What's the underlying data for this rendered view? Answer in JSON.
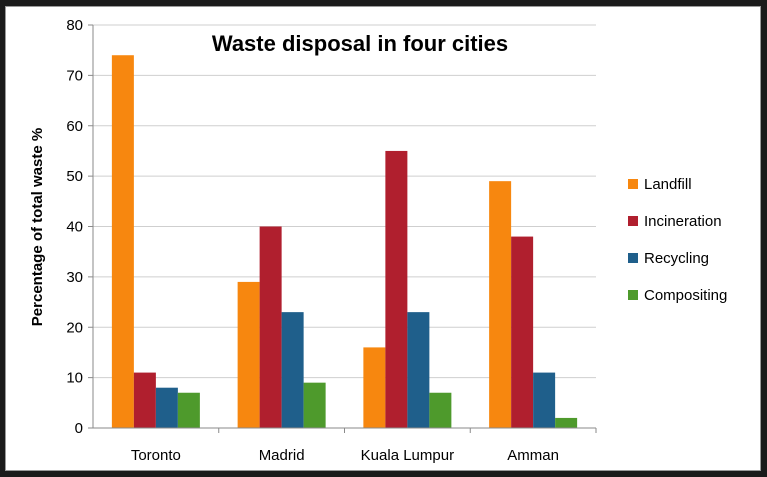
{
  "chart_data": {
    "type": "bar",
    "title": "Waste disposal in four cities",
    "xlabel": "",
    "ylabel": "Percentage of total waste %",
    "categories": [
      "Toronto",
      "Madrid",
      "Kuala Lumpur",
      "Amman"
    ],
    "series": [
      {
        "name": "Landfill",
        "color": "#f7870f",
        "values": [
          74,
          29,
          16,
          49
        ]
      },
      {
        "name": "Incineration",
        "color": "#b01f2e",
        "values": [
          11,
          40,
          55,
          38
        ]
      },
      {
        "name": "Recycling",
        "color": "#1f5f8b",
        "values": [
          8,
          23,
          23,
          11
        ]
      },
      {
        "name": "Compositing",
        "color": "#4e9a2c",
        "values": [
          7,
          9,
          7,
          2
        ]
      }
    ],
    "ylim": [
      0,
      80
    ],
    "yticks": [
      "0",
      "10",
      "20",
      "30",
      "40",
      "50",
      "60",
      "70",
      "80"
    ],
    "grid": true,
    "legend_position": "right"
  }
}
